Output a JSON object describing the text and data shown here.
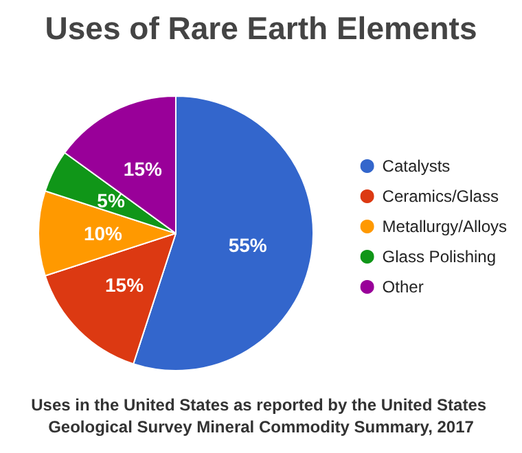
{
  "chart_data": {
    "type": "pie",
    "title": "Uses of Rare Earth Elements",
    "categories": [
      "Catalysts",
      "Ceramics/Glass",
      "Metallurgy/Alloys",
      "Glass Polishing",
      "Other"
    ],
    "values": [
      55,
      15,
      10,
      5,
      15
    ],
    "colors": [
      "#3366cc",
      "#dc3912",
      "#ff9900",
      "#109618",
      "#990099"
    ],
    "value_labels": [
      "55%",
      "15%",
      "10%",
      "5%",
      "15%"
    ],
    "legend": "right",
    "annotations": [
      "Uses in the United States as reported by the United States Geological Survey Mineral Commodity Summary, 2017"
    ]
  }
}
